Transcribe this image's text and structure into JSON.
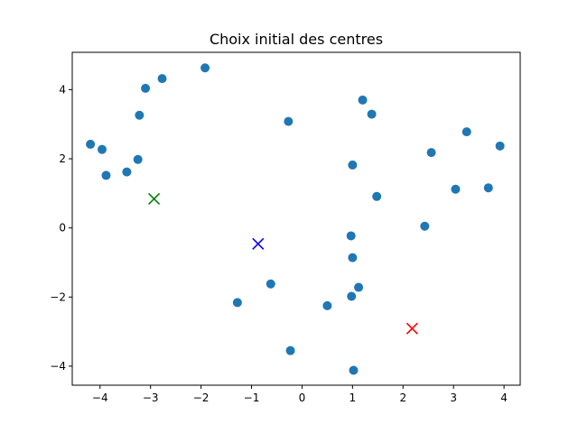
{
  "chart_data": {
    "type": "scatter",
    "title": "Choix initial des centres",
    "xlabel": "",
    "ylabel": "",
    "xlim": [
      -4.55,
      4.32
    ],
    "ylim": [
      -4.55,
      5.08
    ],
    "xticks": [
      -4,
      -3,
      -2,
      -1,
      0,
      1,
      2,
      3,
      4
    ],
    "yticks": [
      -4,
      -2,
      0,
      2,
      4
    ],
    "grid": false,
    "colors": {
      "points": "#1f77b4",
      "centers": [
        "#008000",
        "#0000ff",
        "#ff0000"
      ]
    },
    "series": [
      {
        "marker": "circle",
        "x": [
          -4.19,
          -3.96,
          -3.88,
          -3.47,
          -3.25,
          -3.22,
          -3.1,
          -2.77,
          -1.92,
          -1.28,
          -0.62,
          -0.27,
          -0.23,
          0.5,
          0.97,
          0.98,
          1.0,
          1.0,
          1.02,
          1.12,
          1.2,
          1.38,
          1.48,
          2.43,
          2.56,
          3.04,
          3.26,
          3.69,
          3.92
        ],
        "y": [
          2.42,
          2.27,
          1.52,
          1.62,
          1.98,
          3.26,
          4.04,
          4.32,
          4.63,
          -2.16,
          -1.62,
          3.08,
          -3.55,
          -2.25,
          -0.23,
          -1.98,
          1.82,
          -0.86,
          -4.12,
          -1.72,
          3.7,
          3.29,
          0.91,
          0.05,
          2.18,
          1.12,
          2.78,
          1.16,
          2.37
        ]
      },
      {
        "marker": "x",
        "x": [
          -2.93,
          -0.87,
          2.18
        ],
        "y": [
          0.84,
          -0.46,
          -2.91
        ]
      }
    ]
  }
}
